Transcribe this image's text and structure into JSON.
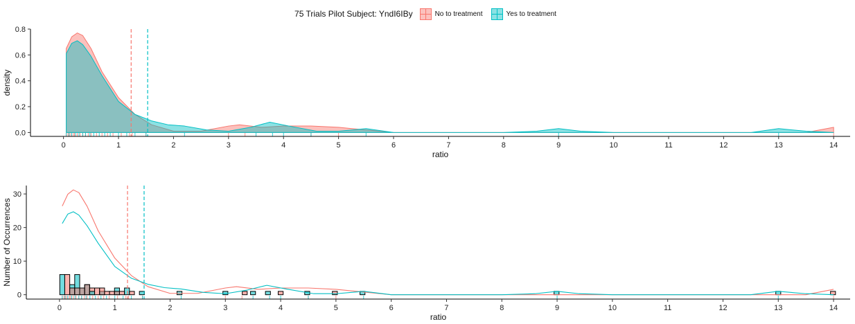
{
  "legend": {
    "title": "75 Trials Pilot Subject:  YndI6IBy",
    "items": [
      {
        "key": "no",
        "label": "No to treatment",
        "fill": "#F8766D",
        "stroke": "#F8766D"
      },
      {
        "key": "yes",
        "label": "Yes to treatment",
        "fill": "#00BFC4",
        "stroke": "#00BFC4"
      }
    ]
  },
  "chart_data": [
    {
      "type": "area",
      "xlabel": "ratio",
      "ylabel": "density",
      "xlim": [
        -0.6,
        14.3
      ],
      "ylim": [
        -0.03,
        0.8
      ],
      "xticks": [
        0,
        1,
        2,
        3,
        4,
        5,
        6,
        7,
        8,
        9,
        10,
        11,
        12,
        13,
        14
      ],
      "yticks": [
        0.0,
        0.2,
        0.4,
        0.6,
        0.8
      ],
      "ytick_labels": [
        "0.0",
        "0.2",
        "0.4",
        "0.6",
        "0.8"
      ],
      "grid": false,
      "vlines": [
        {
          "series": "No to treatment",
          "x": 1.23
        },
        {
          "series": "Yes to treatment",
          "x": 1.53
        }
      ],
      "series": [
        {
          "name": "No to treatment",
          "x": [
            0.05,
            0.15,
            0.25,
            0.35,
            0.5,
            0.7,
            1.0,
            1.3,
            1.6,
            2.0,
            2.5,
            3.0,
            3.2,
            3.6,
            4.0,
            4.5,
            5.0,
            5.5,
            6.0,
            8.0,
            13.5,
            14.0
          ],
          "y": [
            0.65,
            0.74,
            0.77,
            0.75,
            0.65,
            0.47,
            0.27,
            0.14,
            0.06,
            0.01,
            0.01,
            0.05,
            0.06,
            0.04,
            0.05,
            0.05,
            0.04,
            0.02,
            0.0,
            0.0,
            0.0,
            0.04
          ]
        },
        {
          "name": "Yes to treatment",
          "x": [
            0.05,
            0.15,
            0.25,
            0.35,
            0.5,
            0.7,
            1.0,
            1.3,
            1.6,
            1.9,
            2.2,
            2.6,
            3.0,
            3.4,
            3.75,
            4.1,
            4.6,
            5.0,
            5.5,
            6.0,
            8.0,
            8.6,
            9.0,
            9.4,
            10.0,
            12.5,
            13.0,
            13.5,
            14.0
          ],
          "y": [
            0.61,
            0.69,
            0.71,
            0.68,
            0.59,
            0.44,
            0.24,
            0.14,
            0.09,
            0.06,
            0.05,
            0.02,
            0.01,
            0.04,
            0.08,
            0.05,
            0.01,
            0.01,
            0.03,
            0.0,
            0.0,
            0.01,
            0.03,
            0.01,
            0.0,
            0.0,
            0.03,
            0.01,
            0.0
          ]
        }
      ],
      "rug": {
        "No to treatment": [
          0.05,
          0.08,
          0.1,
          0.12,
          0.15,
          0.18,
          0.2,
          0.25,
          0.3,
          0.35,
          0.4,
          0.45,
          0.5,
          0.6,
          0.7,
          0.8,
          0.9,
          1.05,
          1.2,
          1.25,
          1.5,
          3.0,
          3.3,
          4.5,
          5.0,
          14.0
        ],
        "Yes to treatment": [
          0.05,
          0.1,
          0.15,
          0.22,
          0.28,
          0.35,
          0.4,
          0.48,
          0.55,
          0.65,
          0.75,
          0.85,
          1.0,
          1.15,
          1.3,
          1.5,
          2.2,
          3.5,
          3.8,
          4.0,
          4.5,
          5.5,
          9.0,
          13.0
        ]
      }
    },
    {
      "type": "bar",
      "xlabel": "ratio",
      "ylabel": "Number of Occurrences",
      "xlim": [
        -0.6,
        14.3
      ],
      "ylim": [
        -1.3,
        32.5
      ],
      "xticks": [
        0,
        1,
        2,
        3,
        4,
        5,
        6,
        7,
        8,
        9,
        10,
        11,
        12,
        13,
        14
      ],
      "yticks": [
        0,
        10,
        20,
        30
      ],
      "ytick_labels": [
        "0",
        "10",
        "20",
        "30"
      ],
      "grid": false,
      "bin_width": 0.09,
      "vlines": [
        {
          "series": "No to treatment",
          "x": 1.23
        },
        {
          "series": "Yes to treatment",
          "x": 1.53
        }
      ],
      "bars": [
        {
          "series": "Yes to treatment",
          "x": 0.05,
          "count": 6
        },
        {
          "series": "No to treatment",
          "x": 0.14,
          "count": 6
        },
        {
          "series": "Yes to treatment",
          "x": 0.23,
          "count": 3
        },
        {
          "series": "No to treatment",
          "x": 0.23,
          "count": 2
        },
        {
          "series": "Yes to treatment",
          "x": 0.32,
          "count": 6
        },
        {
          "series": "No to treatment",
          "x": 0.32,
          "count": 2
        },
        {
          "series": "Yes to treatment",
          "x": 0.41,
          "count": 2
        },
        {
          "series": "No to treatment",
          "x": 0.41,
          "count": 2
        },
        {
          "series": "Yes to treatment",
          "x": 0.5,
          "count": 3
        },
        {
          "series": "No to treatment",
          "x": 0.5,
          "count": 3
        },
        {
          "series": "No to treatment",
          "x": 0.59,
          "count": 2
        },
        {
          "series": "Yes to treatment",
          "x": 0.59,
          "count": 1
        },
        {
          "series": "No to treatment",
          "x": 0.68,
          "count": 2
        },
        {
          "series": "Yes to treatment",
          "x": 0.77,
          "count": 1
        },
        {
          "series": "No to treatment",
          "x": 0.77,
          "count": 2
        },
        {
          "series": "No to treatment",
          "x": 0.86,
          "count": 1
        },
        {
          "series": "No to treatment",
          "x": 0.95,
          "count": 1
        },
        {
          "series": "Yes to treatment",
          "x": 1.04,
          "count": 2
        },
        {
          "series": "No to treatment",
          "x": 1.04,
          "count": 1
        },
        {
          "series": "No to treatment",
          "x": 1.13,
          "count": 1
        },
        {
          "series": "Yes to treatment",
          "x": 1.22,
          "count": 2
        },
        {
          "series": "No to treatment",
          "x": 1.31,
          "count": 1
        },
        {
          "series": "Yes to treatment",
          "x": 1.49,
          "count": 1
        },
        {
          "series": "Yes to treatment",
          "x": 2.17,
          "count": 1
        },
        {
          "series": "Yes to treatment",
          "x": 3.0,
          "count": 1
        },
        {
          "series": "No to treatment",
          "x": 3.35,
          "count": 1
        },
        {
          "series": "Yes to treatment",
          "x": 3.5,
          "count": 1
        },
        {
          "series": "Yes to treatment",
          "x": 3.77,
          "count": 1
        },
        {
          "series": "No to treatment",
          "x": 4.0,
          "count": 1
        },
        {
          "series": "Yes to treatment",
          "x": 4.48,
          "count": 1
        },
        {
          "series": "No to treatment",
          "x": 4.98,
          "count": 1
        },
        {
          "series": "Yes to treatment",
          "x": 5.48,
          "count": 1
        },
        {
          "series": "Yes to treatment",
          "x": 8.99,
          "count": 1
        },
        {
          "series": "Yes to treatment",
          "x": 13.0,
          "count": 1
        },
        {
          "series": "No to treatment",
          "x": 13.99,
          "count": 1
        }
      ],
      "series": [
        {
          "name": "No to treatment",
          "x": [
            0.05,
            0.15,
            0.25,
            0.35,
            0.5,
            0.7,
            1.0,
            1.3,
            1.6,
            2.0,
            2.5,
            3.0,
            3.2,
            3.6,
            4.0,
            4.5,
            5.0,
            5.5,
            6.0,
            8.0,
            13.5,
            14.0
          ],
          "y": [
            26.4,
            29.9,
            31.2,
            30.4,
            26.3,
            19.0,
            10.9,
            5.7,
            2.4,
            0.4,
            0.4,
            2.0,
            2.4,
            1.6,
            2.0,
            2.0,
            1.6,
            0.8,
            0.0,
            0.0,
            0.0,
            1.6
          ]
        },
        {
          "name": "Yes to treatment",
          "x": [
            0.05,
            0.15,
            0.25,
            0.35,
            0.5,
            0.7,
            1.0,
            1.3,
            1.6,
            1.9,
            2.2,
            2.6,
            3.0,
            3.4,
            3.75,
            4.1,
            4.6,
            5.0,
            5.5,
            6.0,
            8.0,
            8.6,
            9.0,
            9.4,
            10.0,
            12.5,
            13.0,
            13.5,
            14.0
          ],
          "y": [
            21.2,
            24.0,
            24.7,
            23.7,
            20.5,
            15.3,
            8.4,
            4.9,
            3.1,
            2.1,
            1.7,
            0.7,
            0.3,
            1.4,
            2.8,
            1.7,
            0.3,
            0.3,
            1.0,
            0.0,
            0.0,
            0.3,
            1.0,
            0.3,
            0.0,
            0.0,
            1.0,
            0.3,
            0.0
          ]
        }
      ],
      "rug": {
        "No to treatment": [
          0.05,
          0.08,
          0.1,
          0.12,
          0.15,
          0.18,
          0.2,
          0.25,
          0.3,
          0.35,
          0.4,
          0.45,
          0.5,
          0.6,
          0.7,
          0.8,
          0.9,
          1.05,
          1.2,
          1.25,
          1.5,
          3.0,
          3.3,
          4.5,
          5.0,
          14.0
        ],
        "Yes to treatment": [
          0.05,
          0.1,
          0.15,
          0.22,
          0.28,
          0.35,
          0.4,
          0.48,
          0.55,
          0.65,
          0.75,
          0.85,
          1.0,
          1.15,
          1.3,
          1.5,
          2.2,
          3.5,
          3.8,
          4.0,
          4.5,
          5.5,
          9.0,
          13.0
        ]
      }
    }
  ]
}
